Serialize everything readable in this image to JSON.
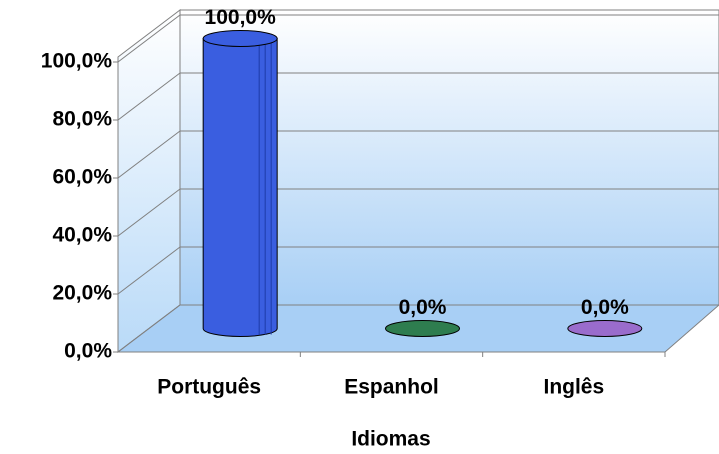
{
  "chart_data": {
    "type": "bar3d",
    "x_label": "Idiomas",
    "categories": [
      "Português",
      "Espanhol",
      "Inglês"
    ],
    "values": [
      100,
      0,
      0
    ],
    "value_labels": [
      "100,0%",
      "0,0%",
      "0,0%"
    ],
    "colors": [
      "#3a5ee0",
      "#2e7d4f",
      "#9a6ccc"
    ],
    "ylim": [
      0,
      100
    ],
    "yticks": [
      {
        "value": 0,
        "label": "0,0%"
      },
      {
        "value": 20,
        "label": "20,0%"
      },
      {
        "value": 40,
        "label": "40,0%"
      },
      {
        "value": 60,
        "label": "60,0%"
      },
      {
        "value": 80,
        "label": "80,0%"
      },
      {
        "value": 100,
        "label": "100,0%"
      }
    ],
    "grid": true
  }
}
